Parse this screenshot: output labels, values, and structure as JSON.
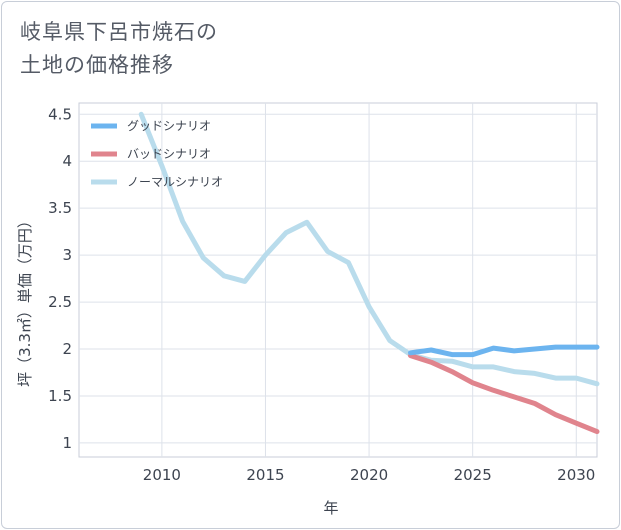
{
  "title_lines": [
    "岐阜県下呂市焼石の",
    "土地の価格推移"
  ],
  "chart_data": {
    "type": "line",
    "xlabel": "年",
    "ylabel": "坪（3.3㎡）単価（万円）",
    "xlim": [
      2006,
      2031
    ],
    "ylim": [
      0.85,
      4.62
    ],
    "x_ticks": [
      2010,
      2015,
      2020,
      2025,
      2030
    ],
    "y_ticks": [
      1,
      1.5,
      2,
      2.5,
      3,
      3.5,
      4,
      4.5
    ],
    "y_tick_labels": [
      "1",
      "1.5",
      "2",
      "2.5",
      "3",
      "3.5",
      "4",
      "4.5"
    ],
    "grid": true,
    "legend_position": "top-left",
    "series": [
      {
        "name": "グッドシナリオ",
        "color": "#6cb4ef",
        "x": [
          2022,
          2023,
          2024,
          2025,
          2026,
          2027,
          2028,
          2029,
          2030,
          2031
        ],
        "y": [
          1.96,
          1.99,
          1.94,
          1.94,
          2.01,
          1.98,
          2.0,
          2.02,
          2.02,
          2.02
        ]
      },
      {
        "name": "バッドシナリオ",
        "color": "#e0848d",
        "x": [
          2022,
          2023,
          2024,
          2025,
          2026,
          2027,
          2028,
          2029,
          2030,
          2031
        ],
        "y": [
          1.93,
          1.86,
          1.76,
          1.64,
          1.56,
          1.49,
          1.42,
          1.3,
          1.21,
          1.12
        ]
      },
      {
        "name": "ノーマルシナリオ",
        "color": "#b9dcec",
        "x": [
          2009,
          2010,
          2011,
          2012,
          2013,
          2014,
          2015,
          2016,
          2017,
          2018,
          2019,
          2020,
          2021,
          2022,
          2023,
          2024,
          2025,
          2026,
          2027,
          2028,
          2029,
          2030,
          2031
        ],
        "y": [
          4.5,
          3.95,
          3.36,
          2.97,
          2.78,
          2.72,
          3.0,
          3.24,
          3.35,
          3.04,
          2.92,
          2.45,
          2.09,
          1.94,
          1.88,
          1.87,
          1.81,
          1.81,
          1.76,
          1.74,
          1.69,
          1.69,
          1.63
        ]
      }
    ]
  }
}
